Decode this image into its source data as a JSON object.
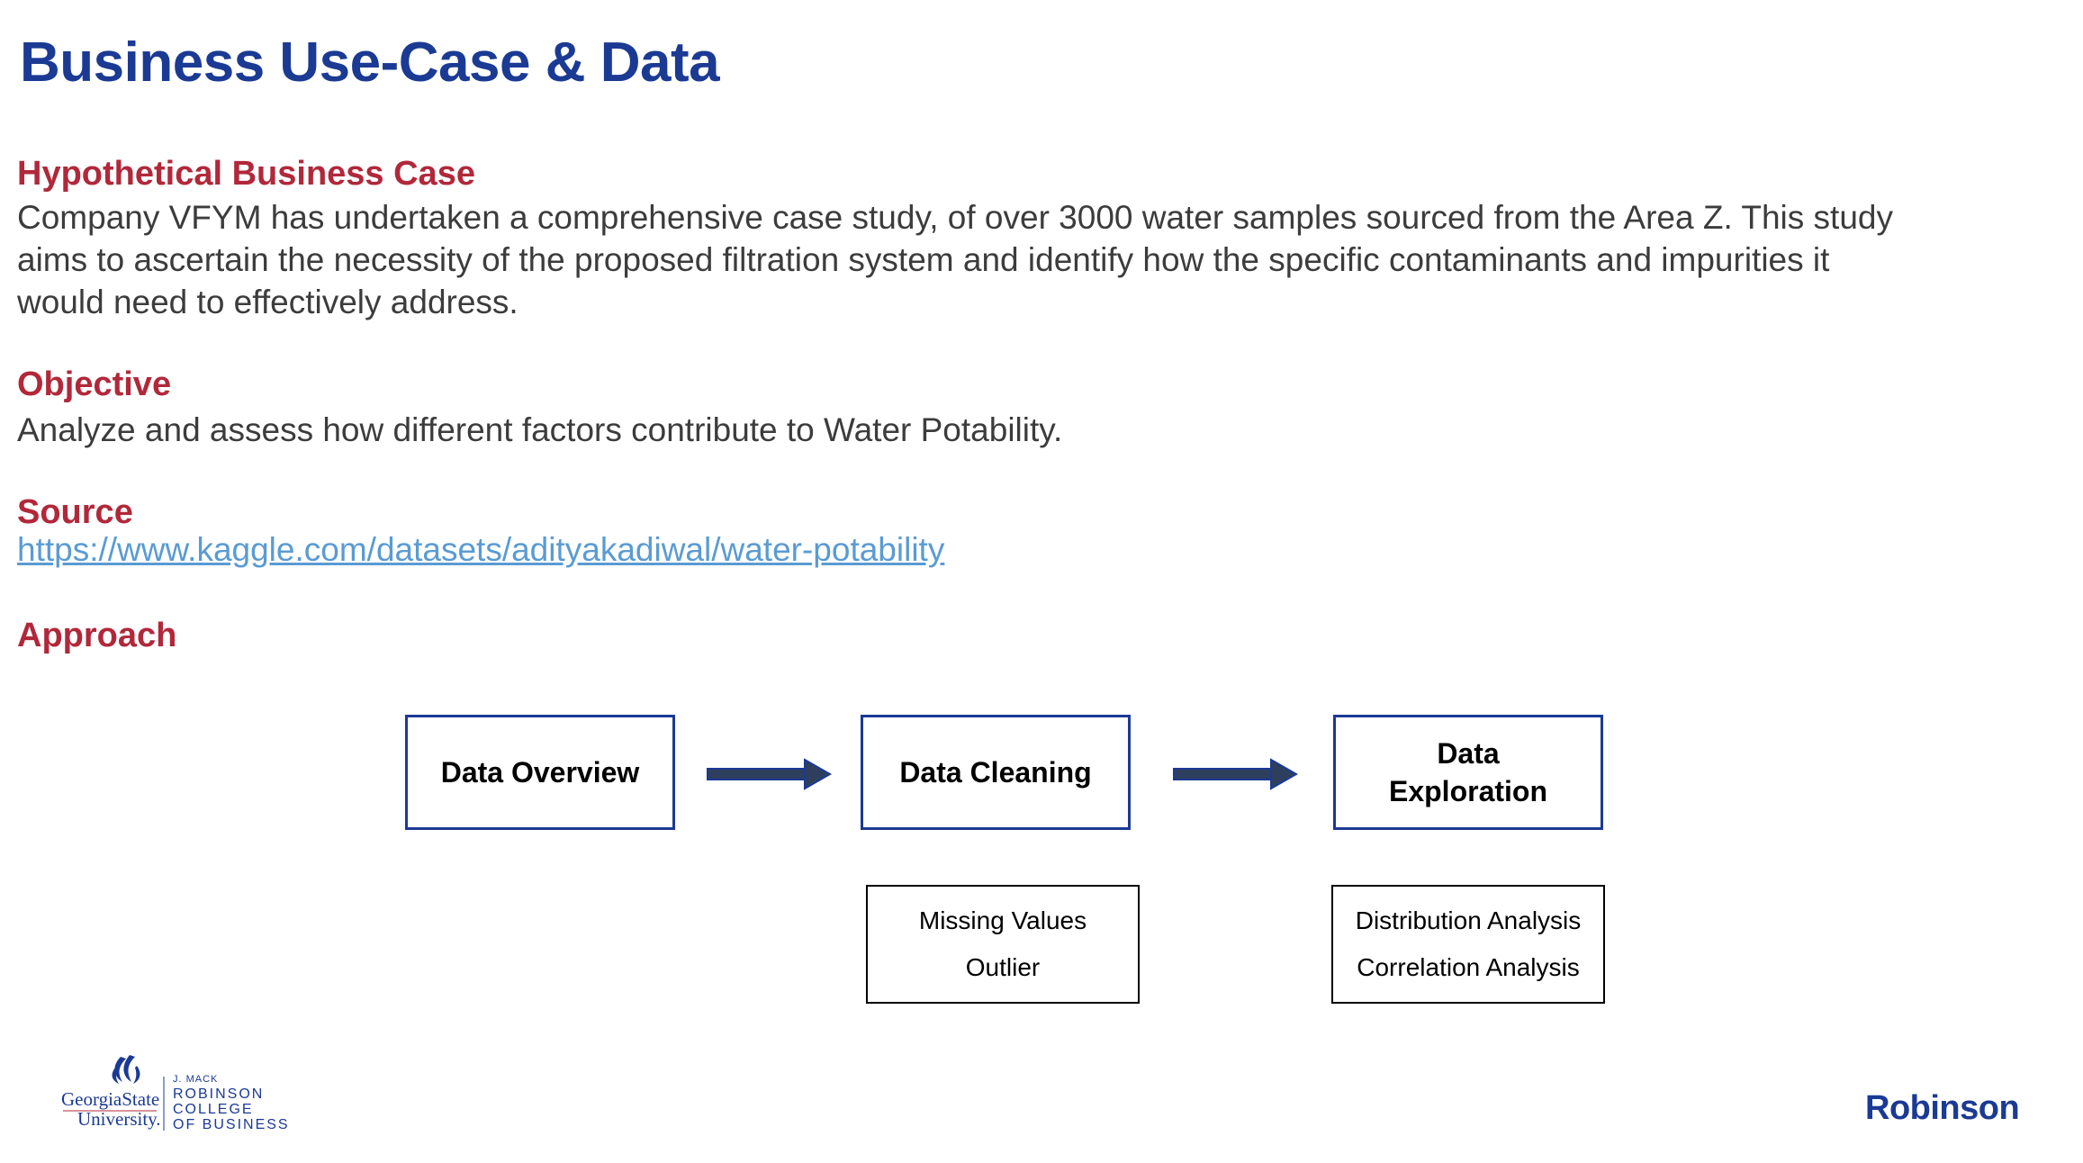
{
  "title": "Business Use-Case & Data",
  "sections": {
    "business_case": {
      "heading": "Hypothetical Business Case",
      "lines": [
        "Company VFYM  has undertaken a comprehensive case study, of over 3000 water samples sourced from the Area Z. This study",
        "aims to ascertain the necessity of the proposed filtration system and identify how the specific contaminants and impurities it",
        "would need to effectively address."
      ]
    },
    "objective": {
      "heading": "Objective",
      "text": "Analyze and assess how different factors contribute to Water Potability."
    },
    "source": {
      "heading": "Source",
      "link": "https://www.kaggle.com/datasets/adityakadiwal/water-potability"
    },
    "approach": {
      "heading": "Approach"
    }
  },
  "flow": {
    "steps": [
      {
        "label": "Data Overview"
      },
      {
        "label": "Data Cleaning"
      },
      {
        "label_line1": "Data",
        "label_line2": "Exploration"
      }
    ],
    "details": {
      "cleaning": [
        "Missing Values",
        "Outlier"
      ],
      "exploration": [
        "Distribution Analysis",
        "Correlation Analysis"
      ]
    }
  },
  "footer": {
    "gsu_logo": {
      "left_line1": "GeorgiaState",
      "left_line2": "University.",
      "right_line1": "J. MACK",
      "right_line2": "ROBINSON",
      "right_line3": "COLLEGE",
      "right_line4": "OF BUSINESS"
    },
    "brand": "Robinson"
  },
  "colors": {
    "title": "#1b3a94",
    "heading": "#b1283a",
    "body": "#3c3c3c",
    "link": "#5a9bd3",
    "box_border": "#1b3a94",
    "arrow": "#2e3f5e"
  }
}
